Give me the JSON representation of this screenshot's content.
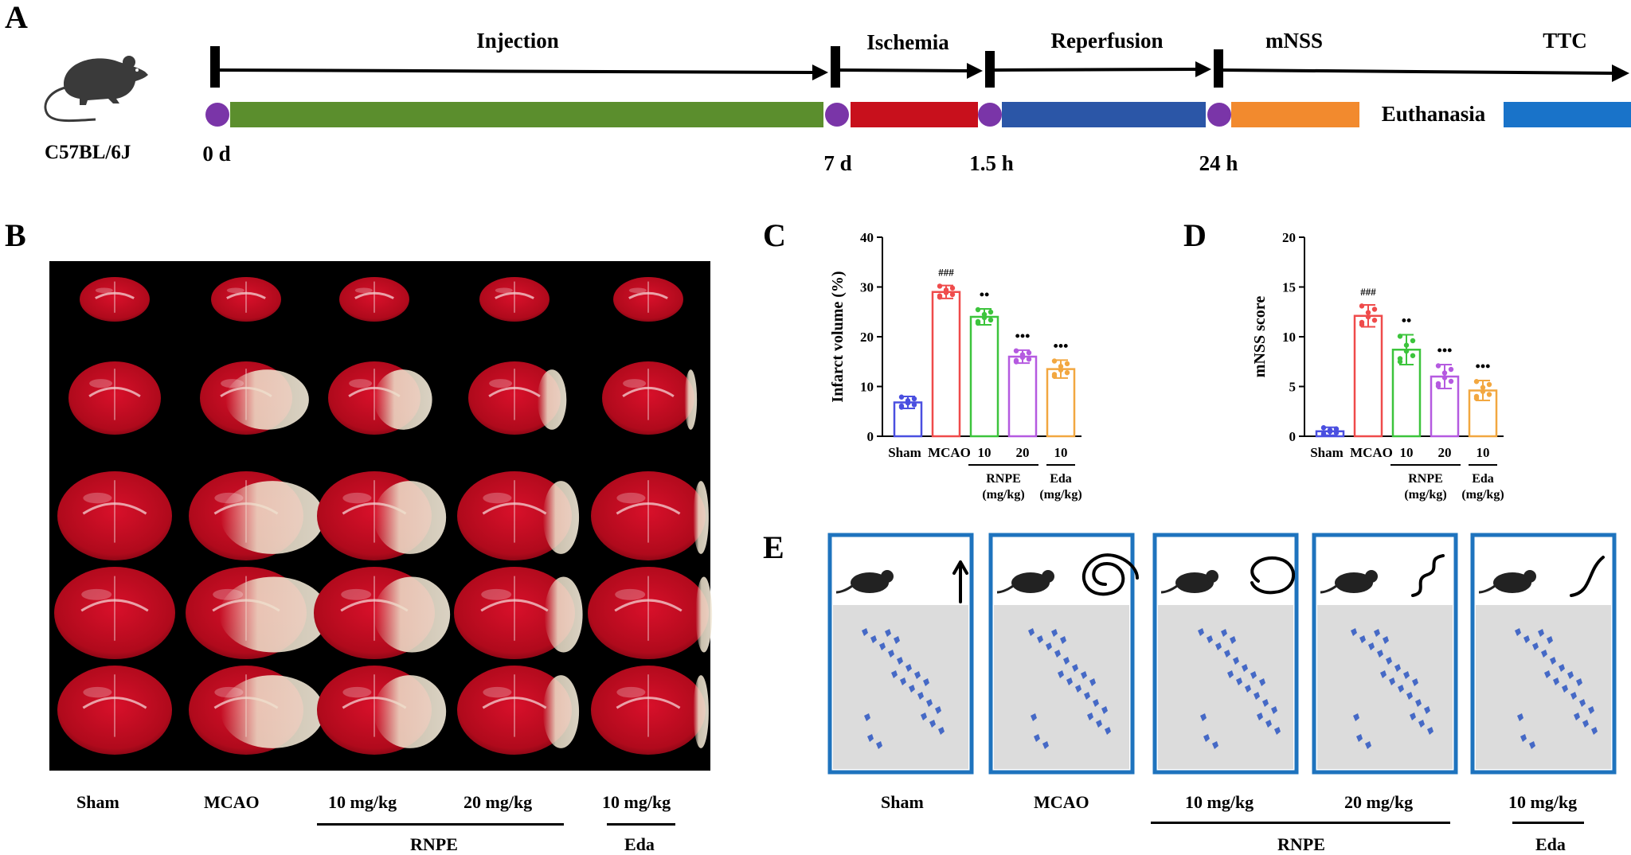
{
  "panels": {
    "a": "A",
    "b": "B",
    "c": "C",
    "d": "D",
    "e": "E"
  },
  "timeline": {
    "strain": "C57BL/6J",
    "phases": [
      {
        "label": "Injection",
        "color": "#5b8e2d"
      },
      {
        "label": "Ischemia",
        "color": "#c8101c"
      },
      {
        "label": "Reperfusion",
        "color": "#2b56a7"
      },
      {
        "label": "mNSS",
        "color": "#f28a2e"
      },
      {
        "label": "TTC",
        "color": "#1973c9"
      }
    ],
    "euthanasia": "Euthanasia",
    "times": [
      "0 d",
      "7 d",
      "1.5 h",
      "24 h"
    ],
    "marker_color": "#7a35a8"
  },
  "panel_b": {
    "labels": [
      "Sham",
      "MCAO",
      "10 mg/kg",
      "20 mg/kg",
      "10 mg/kg"
    ],
    "group_labels": [
      "RNPE",
      "Eda"
    ]
  },
  "panel_e": {
    "labels": [
      "Sham",
      "MCAO",
      "10 mg/kg",
      "20 mg/kg",
      "10 mg/kg"
    ],
    "group_labels": [
      "RNPE",
      "Eda"
    ],
    "frame_color": "#1e73be"
  },
  "chart_data": [
    {
      "type": "bar",
      "panel": "C",
      "ylabel": "Infarct volume (%)",
      "ylim": [
        0,
        40
      ],
      "yticks": [
        0,
        10,
        20,
        30,
        40
      ],
      "categories": [
        "Sham",
        "MCAO",
        "10",
        "20",
        "10"
      ],
      "groups": [
        {
          "label": "RNPE",
          "sub": "(mg/kg)"
        },
        {
          "label": "Eda",
          "sub": "(mg/kg)"
        }
      ],
      "values": [
        6.8,
        29.0,
        24.0,
        16.0,
        13.5
      ],
      "errors": [
        1.2,
        1.3,
        1.6,
        1.3,
        1.8
      ],
      "colors": [
        "#4a4fe0",
        "#ef4b4b",
        "#3cc43c",
        "#b55ae0",
        "#f2a740"
      ],
      "annotations": [
        "",
        "###",
        "**",
        "***",
        "***"
      ]
    },
    {
      "type": "bar",
      "panel": "D",
      "ylabel": "mNSS score",
      "ylim": [
        0,
        20
      ],
      "yticks": [
        0,
        5,
        10,
        15,
        20
      ],
      "categories": [
        "Sham",
        "MCAO",
        "10",
        "20",
        "10"
      ],
      "groups": [
        {
          "label": "RNPE",
          "sub": "(mg/kg)"
        },
        {
          "label": "Eda",
          "sub": "(mg/kg)"
        }
      ],
      "values": [
        0.5,
        12.1,
        8.7,
        6.0,
        4.6
      ],
      "errors": [
        0.4,
        1.1,
        1.5,
        1.2,
        1.0
      ],
      "colors": [
        "#4a4fe0",
        "#ef4b4b",
        "#3cc43c",
        "#b55ae0",
        "#f2a740"
      ],
      "annotations": [
        "",
        "###",
        "**",
        "***",
        "***"
      ]
    }
  ]
}
